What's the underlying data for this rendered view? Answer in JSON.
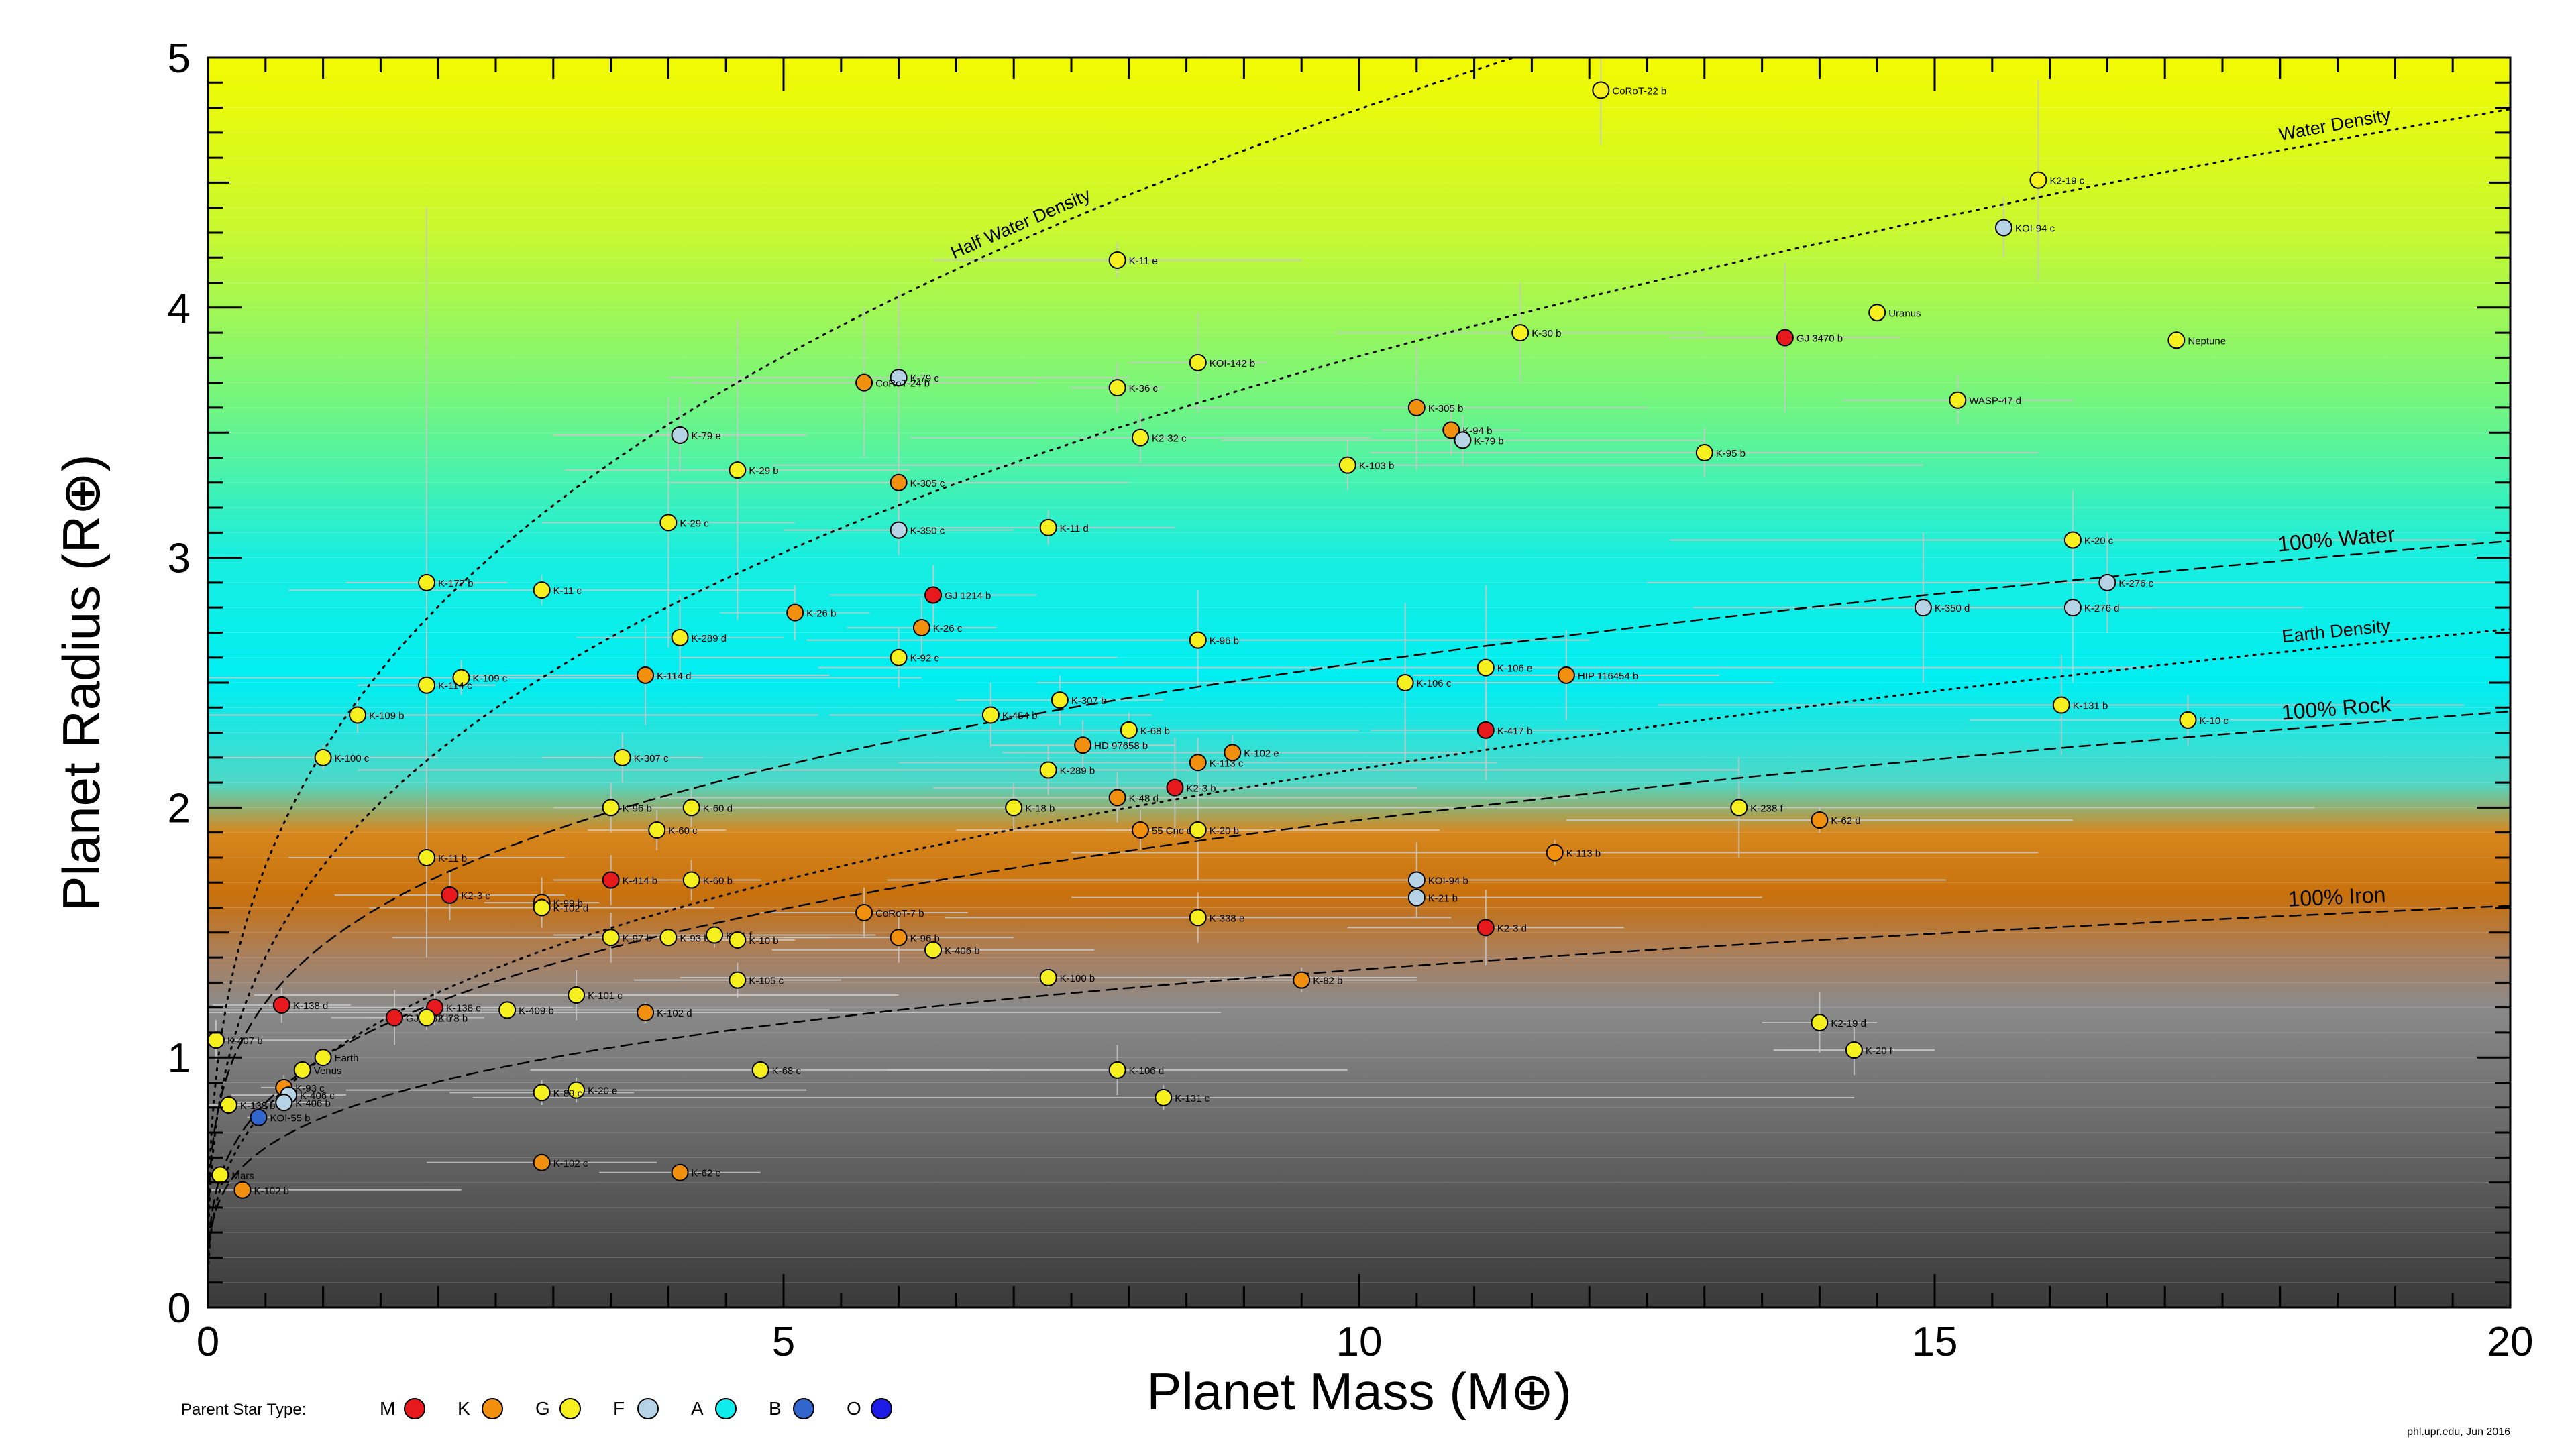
{
  "chart_data": {
    "type": "scatter",
    "xlabel": "Planet Mass (M⊕)",
    "ylabel": "Planet Radius (R⊕)",
    "xlim": [
      0,
      20
    ],
    "ylim": [
      0,
      5
    ],
    "x_ticks": [
      "0",
      "5",
      "10",
      "15",
      "20"
    ],
    "y_ticks": [
      "0",
      "1",
      "2",
      "3",
      "4",
      "5"
    ],
    "background": "vertical gradient by radius: dark gray (iron) → orange (rock) → cyan (water) → yellow (gas)",
    "credit": "phl.upr.edu, Jun 2016",
    "colors": {
      "M": "#e8191c",
      "K": "#f0900e",
      "G": "#f5f01e",
      "F": "#b6d3e6",
      "A": "#10ecec",
      "B": "#3366cc",
      "O": "#1c1ce6"
    },
    "legend": {
      "title": "Parent Star Type:",
      "items": [
        {
          "label": "M",
          "color": "#e8191c"
        },
        {
          "label": "K",
          "color": "#f0900e"
        },
        {
          "label": "G",
          "color": "#f5f01e"
        },
        {
          "label": "F",
          "color": "#b6d3e6"
        },
        {
          "label": "A",
          "color": "#10ecec"
        },
        {
          "label": "B",
          "color": "#3366cc"
        },
        {
          "label": "O",
          "color": "#1c1ce6"
        }
      ]
    },
    "curves": [
      {
        "label": "Half Water Density",
        "density": 0.5,
        "style": "dotted"
      },
      {
        "label": "Water Density",
        "density": 1.0,
        "style": "dotted"
      },
      {
        "label": "Earth Density",
        "density": 5.51,
        "style": "dotted"
      },
      {
        "label": "100% Water",
        "coef": 1.45,
        "exp": 0.25,
        "style": "dashed"
      },
      {
        "label": "100% Rock",
        "coef": 1.0,
        "exp": 0.29,
        "style": "dashed"
      },
      {
        "label": "100% Iron",
        "coef": 0.76,
        "exp": 0.25,
        "style": "dashed"
      }
    ],
    "points": [
      {
        "label": "CoRoT-22 b",
        "x": 12.1,
        "y": 4.87,
        "star": "G",
        "xerr": 0.0,
        "yerr": 0.22
      },
      {
        "label": "K2-19 c",
        "x": 15.9,
        "y": 4.51,
        "star": "G",
        "xerr": 0.0,
        "yerr": 0.4
      },
      {
        "label": "KOI-94 c",
        "x": 15.6,
        "y": 4.32,
        "star": "F",
        "xerr": 0.0,
        "yerr": 0.12
      },
      {
        "label": "K-11 e",
        "x": 7.9,
        "y": 4.19,
        "star": "G",
        "xerr": 1.6,
        "yerr": 0.07
      },
      {
        "label": "Uranus",
        "x": 14.5,
        "y": 3.98,
        "star": "G"
      },
      {
        "label": "K-30 b",
        "x": 11.4,
        "y": 3.9,
        "star": "G",
        "xerr": 1.6,
        "yerr": 0.2
      },
      {
        "label": "GJ 3470 b",
        "x": 13.7,
        "y": 3.88,
        "star": "M",
        "xerr": 1.0,
        "yerr": 0.3
      },
      {
        "label": "Neptune",
        "x": 17.1,
        "y": 3.87,
        "star": "G"
      },
      {
        "label": "KOI-142 b",
        "x": 8.6,
        "y": 3.78,
        "star": "G",
        "xerr": 0.6,
        "yerr": 0.2
      },
      {
        "label": "K-79 c",
        "x": 6.0,
        "y": 3.72,
        "star": "F",
        "xerr": 2.0,
        "yerr": 0.35
      },
      {
        "label": "CoRoT-24 b",
        "x": 5.7,
        "y": 3.7,
        "star": "K",
        "xerr": 1.5,
        "yerr": 0.3
      },
      {
        "label": "K-36 c",
        "x": 7.9,
        "y": 3.68,
        "star": "G",
        "xerr": 0.4,
        "yerr": 0.1
      },
      {
        "label": "WASP-47 d",
        "x": 15.2,
        "y": 3.63,
        "star": "G",
        "xerr": 1.0,
        "yerr": 0.1
      },
      {
        "label": "K-305 b",
        "x": 10.5,
        "y": 3.6,
        "star": "K",
        "xerr": 2.0,
        "yerr": 0.25
      },
      {
        "label": "K-94 b",
        "x": 10.8,
        "y": 3.51,
        "star": "K",
        "xerr": 0.6,
        "yerr": 0.1
      },
      {
        "label": "K-79 e",
        "x": 4.1,
        "y": 3.49,
        "star": "F",
        "xerr": 1.1,
        "yerr": 0.15
      },
      {
        "label": "K2-32 c",
        "x": 8.1,
        "y": 3.48,
        "star": "G",
        "xerr": 2.0,
        "yerr": 0.1
      },
      {
        "label": "K-79 b",
        "x": 10.9,
        "y": 3.47,
        "star": "F",
        "xerr": 2.1,
        "yerr": 0.1
      },
      {
        "label": "K-95 b",
        "x": 13.0,
        "y": 3.42,
        "star": "G",
        "xerr": 2.9,
        "yerr": 0.1
      },
      {
        "label": "K-103 b",
        "x": 9.9,
        "y": 3.37,
        "star": "G",
        "xerr": 5.0,
        "yerr": 0.1
      },
      {
        "label": "K-29 b",
        "x": 4.6,
        "y": 3.35,
        "star": "G",
        "xerr": 1.5,
        "yerr": 0.6
      },
      {
        "label": "K-305 c",
        "x": 6.0,
        "y": 3.3,
        "star": "K",
        "xerr": 2.0,
        "yerr": 0.2
      },
      {
        "label": "K-29 c",
        "x": 4.0,
        "y": 3.14,
        "star": "G",
        "xerr": 1.1,
        "yerr": 0.5
      },
      {
        "label": "K-350 c",
        "x": 6.0,
        "y": 3.11,
        "star": "F",
        "xerr": 1.0,
        "yerr": 0.1
      },
      {
        "label": "K-11 d",
        "x": 7.3,
        "y": 3.12,
        "star": "G",
        "xerr": 1.1,
        "yerr": 0.07
      },
      {
        "label": "K-20 c",
        "x": 16.2,
        "y": 3.07,
        "star": "G",
        "xerr": 3.5,
        "yerr": 0.2
      },
      {
        "label": "K-276 c",
        "x": 16.5,
        "y": 2.9,
        "star": "F",
        "xerr": 4.0,
        "yerr": 0.2
      },
      {
        "label": "K-177 b",
        "x": 1.9,
        "y": 2.9,
        "star": "G",
        "xerr": 0.7,
        "yerr": 1.5
      },
      {
        "label": "K-11 c",
        "x": 2.9,
        "y": 2.87,
        "star": "G",
        "xerr": 2.2,
        "yerr": 0.06
      },
      {
        "label": "GJ 1214 b",
        "x": 6.3,
        "y": 2.85,
        "star": "M",
        "xerr": 0.9,
        "yerr": 0.12
      },
      {
        "label": "K-350 d",
        "x": 14.9,
        "y": 2.8,
        "star": "F",
        "xerr": 2.0,
        "yerr": 0.3
      },
      {
        "label": "K-276 d",
        "x": 16.2,
        "y": 2.8,
        "star": "F",
        "xerr": 2.0,
        "yerr": 0.3
      },
      {
        "label": "K-26 b",
        "x": 5.1,
        "y": 2.78,
        "star": "K",
        "xerr": 0.65,
        "yerr": 0.11
      },
      {
        "label": "K-26 c",
        "x": 6.2,
        "y": 2.72,
        "star": "K",
        "xerr": 0.65,
        "yerr": 0.12
      },
      {
        "label": "K-289 d",
        "x": 4.1,
        "y": 2.68,
        "star": "G",
        "xerr": 0.9,
        "yerr": 0.17
      },
      {
        "label": "K-96 b",
        "x": 8.6,
        "y": 2.67,
        "star": "G",
        "xerr": 3.4,
        "yerr": 0.2
      },
      {
        "label": "K-92 c",
        "x": 6.0,
        "y": 2.6,
        "star": "G",
        "xerr": 1.9,
        "yerr": 0.12
      },
      {
        "label": "K-106 e",
        "x": 11.1,
        "y": 2.56,
        "star": "G",
        "xerr": 5.8,
        "yerr": 0.33
      },
      {
        "label": "HIP 116454 b",
        "x": 11.8,
        "y": 2.53,
        "star": "K",
        "xerr": 1.33,
        "yerr": 0.18
      },
      {
        "label": "K-114 d",
        "x": 3.8,
        "y": 2.53,
        "star": "K",
        "xerr": 1.6,
        "yerr": 0.2
      },
      {
        "label": "K-109 c",
        "x": 2.2,
        "y": 2.52,
        "star": "G",
        "xerr": 4.0,
        "yerr": 0.07
      },
      {
        "label": "K-106 c",
        "x": 10.4,
        "y": 2.5,
        "star": "G",
        "xerr": 3.2,
        "yerr": 0.32
      },
      {
        "label": "K-114 c",
        "x": 1.9,
        "y": 2.49,
        "star": "G",
        "xerr": 0.6,
        "yerr": 0.2
      },
      {
        "label": "K-307 b",
        "x": 7.4,
        "y": 2.43,
        "star": "G",
        "xerr": 0.9,
        "yerr": 0.1
      },
      {
        "label": "K-131 b",
        "x": 16.1,
        "y": 2.41,
        "star": "G",
        "xerr": 3.5,
        "yerr": 0.2
      },
      {
        "label": "K-109 b",
        "x": 1.3,
        "y": 2.37,
        "star": "G",
        "xerr": 4.0,
        "yerr": 0.07
      },
      {
        "label": "K-454 b",
        "x": 6.8,
        "y": 2.37,
        "star": "G",
        "xerr": 1.4,
        "yerr": 0.13
      },
      {
        "label": "K-10 c",
        "x": 17.2,
        "y": 2.35,
        "star": "G",
        "xerr": 1.9,
        "yerr": 0.1
      },
      {
        "label": "K-68 b",
        "x": 8.0,
        "y": 2.31,
        "star": "G",
        "xerr": 2.0,
        "yerr": 0.07
      },
      {
        "label": "K-417 b",
        "x": 11.1,
        "y": 2.31,
        "star": "M",
        "xerr": 1.0,
        "yerr": 0.2
      },
      {
        "label": "HD 97658 b",
        "x": 7.6,
        "y": 2.25,
        "star": "K",
        "xerr": 0.8,
        "yerr": 0.1
      },
      {
        "label": "K-102 e",
        "x": 8.9,
        "y": 2.22,
        "star": "K",
        "xerr": 2.0,
        "yerr": 0.07
      },
      {
        "label": "K-100 c",
        "x": 1.0,
        "y": 2.2,
        "star": "G",
        "xerr": 1.0,
        "yerr": 0.05
      },
      {
        "label": "K-307 c",
        "x": 3.6,
        "y": 2.2,
        "star": "G",
        "xerr": 0.7,
        "yerr": 0.1
      },
      {
        "label": "K-113 c",
        "x": 8.6,
        "y": 2.18,
        "star": "K",
        "xerr": 2.6,
        "yerr": 0.1
      },
      {
        "label": "K-289 b",
        "x": 7.3,
        "y": 2.15,
        "star": "G",
        "xerr": 6.0,
        "yerr": 0.1
      },
      {
        "label": "K2-3 b",
        "x": 8.4,
        "y": 2.08,
        "star": "M",
        "xerr": 2.1,
        "yerr": 0.2
      },
      {
        "label": "K-48 d",
        "x": 7.9,
        "y": 2.04,
        "star": "K",
        "xerr": 4.0,
        "yerr": 0.1
      },
      {
        "label": "K-96 b",
        "x": 3.5,
        "y": 2.0,
        "star": "G",
        "xerr": 0.5,
        "yerr": 0.1
      },
      {
        "label": "K-60 d",
        "x": 4.2,
        "y": 2.0,
        "star": "G",
        "xerr": 0.6,
        "yerr": 0.08
      },
      {
        "label": "K-18 b",
        "x": 7.0,
        "y": 2.0,
        "star": "G",
        "xerr": 3.5,
        "yerr": 0.1
      },
      {
        "label": "K-238 f",
        "x": 13.3,
        "y": 2.0,
        "star": "G",
        "xerr": 5.0,
        "yerr": 0.2
      },
      {
        "label": "K-62 d",
        "x": 14.0,
        "y": 1.95,
        "star": "K",
        "xerr": 2.2,
        "yerr": 0.05
      },
      {
        "label": "55 Cnc e",
        "x": 8.1,
        "y": 1.91,
        "star": "K",
        "xerr": 0.3,
        "yerr": 0.08
      },
      {
        "label": "K-20 b",
        "x": 8.6,
        "y": 1.91,
        "star": "G",
        "xerr": 2.1,
        "yerr": 0.2
      },
      {
        "label": "K-60 c",
        "x": 3.9,
        "y": 1.91,
        "star": "G",
        "xerr": 0.6,
        "yerr": 0.08
      },
      {
        "label": "K-113 b",
        "x": 11.7,
        "y": 1.82,
        "star": "K",
        "xerr": 4.2,
        "yerr": 0.05
      },
      {
        "label": "K-11 b",
        "x": 1.9,
        "y": 1.8,
        "star": "G",
        "xerr": 1.2,
        "yerr": 0.05
      },
      {
        "label": "KOI-94 b",
        "x": 10.5,
        "y": 1.71,
        "star": "F",
        "xerr": 4.6,
        "yerr": 0.15
      },
      {
        "label": "K-414 b",
        "x": 3.5,
        "y": 1.71,
        "star": "M",
        "xerr": 0.5,
        "yerr": 0.1
      },
      {
        "label": "K-60 b",
        "x": 4.2,
        "y": 1.71,
        "star": "G",
        "xerr": 0.6,
        "yerr": 0.08
      },
      {
        "label": "K-21 b",
        "x": 10.5,
        "y": 1.64,
        "star": "F",
        "xerr": 3.0,
        "yerr": 0.04
      },
      {
        "label": "K2-3 c",
        "x": 2.1,
        "y": 1.65,
        "star": "M",
        "xerr": 1.0,
        "yerr": 0.1
      },
      {
        "label": "K-99 b",
        "x": 2.9,
        "y": 1.62,
        "star": "K",
        "xerr": 0.5,
        "yerr": 0.1
      },
      {
        "label": "K-102 d",
        "x": 2.9,
        "y": 1.6,
        "star": "G",
        "xerr": 1.5,
        "yerr": 0.05
      },
      {
        "label": "CoRoT-7 b",
        "x": 5.7,
        "y": 1.58,
        "star": "K",
        "xerr": 0.9,
        "yerr": 0.1
      },
      {
        "label": "K-338 e",
        "x": 8.6,
        "y": 1.56,
        "star": "G",
        "xerr": 2.2,
        "yerr": 0.1
      },
      {
        "label": "K2-3 d",
        "x": 11.1,
        "y": 1.52,
        "star": "M",
        "xerr": 1.2,
        "yerr": 0.15
      },
      {
        "label": "K-97 b",
        "x": 3.5,
        "y": 1.48,
        "star": "G",
        "xerr": 1.9,
        "yerr": 0.1
      },
      {
        "label": "K-93 b",
        "x": 4.0,
        "y": 1.48,
        "star": "G",
        "xerr": 0.6,
        "yerr": 0.02
      },
      {
        "label": "K-96 b",
        "x": 6.0,
        "y": 1.48,
        "star": "K",
        "xerr": 1.0,
        "yerr": 0.1
      },
      {
        "label": "K-11 f",
        "x": 4.4,
        "y": 1.49,
        "star": "G",
        "xerr": 1.4,
        "yerr": 0.05
      },
      {
        "label": "K-10 b",
        "x": 4.6,
        "y": 1.47,
        "star": "G",
        "xerr": 0.5,
        "yerr": 0.03
      },
      {
        "label": "K-406 b",
        "x": 6.3,
        "y": 1.43,
        "star": "G",
        "xerr": 1.4,
        "yerr": 0.03
      },
      {
        "label": "K-105 c",
        "x": 4.6,
        "y": 1.31,
        "star": "G",
        "xerr": 0.9,
        "yerr": 0.07
      },
      {
        "label": "K-100 b",
        "x": 7.3,
        "y": 1.32,
        "star": "G",
        "xerr": 3.2,
        "yerr": 0.04
      },
      {
        "label": "K-82 b",
        "x": 9.5,
        "y": 1.31,
        "star": "K",
        "xerr": 1.0,
        "yerr": 0.05
      },
      {
        "label": "K-101 c",
        "x": 3.2,
        "y": 1.25,
        "star": "G",
        "xerr": 2.8,
        "yerr": 0.1
      },
      {
        "label": "K-138 d",
        "x": 0.64,
        "y": 1.21,
        "star": "M",
        "xerr": 0.6,
        "yerr": 0.07
      },
      {
        "label": "K-138 c",
        "x": 1.97,
        "y": 1.2,
        "star": "M",
        "xerr": 1.2,
        "yerr": 0.07
      },
      {
        "label": "K-409 b",
        "x": 2.6,
        "y": 1.19,
        "star": "G",
        "xerr": 2.8,
        "yerr": 0.03
      },
      {
        "label": "K-102 d",
        "x": 3.8,
        "y": 1.18,
        "star": "K",
        "xerr": 5.0,
        "yerr": 0.04
      },
      {
        "label": "GJ 1132 b",
        "x": 1.62,
        "y": 1.16,
        "star": "M",
        "xerr": 0.55,
        "yerr": 0.11
      },
      {
        "label": "K-78 b",
        "x": 1.9,
        "y": 1.16,
        "star": "G",
        "xerr": 0.5,
        "yerr": 0.05
      },
      {
        "label": "K2-19 d",
        "x": 14.0,
        "y": 1.14,
        "star": "G",
        "xerr": 0.5,
        "yerr": 0.12
      },
      {
        "label": "K-407 b",
        "x": 0.07,
        "y": 1.07,
        "star": "G",
        "xerr": 1.2,
        "yerr": 0.08
      },
      {
        "label": "K-20 f",
        "x": 14.3,
        "y": 1.03,
        "star": "G",
        "xerr": 0.7,
        "yerr": 0.1
      },
      {
        "label": "Earth",
        "x": 1.0,
        "y": 1.0,
        "star": "G"
      },
      {
        "label": "Venus",
        "x": 0.82,
        "y": 0.95,
        "star": "G"
      },
      {
        "label": "K-68 c",
        "x": 4.8,
        "y": 0.95,
        "star": "G",
        "xerr": 2.0,
        "yerr": 0.03
      },
      {
        "label": "K-106 d",
        "x": 7.9,
        "y": 0.95,
        "star": "G",
        "xerr": 2.0,
        "yerr": 0.1
      },
      {
        "label": "K-93 c",
        "x": 0.66,
        "y": 0.88,
        "star": "K",
        "xerr": 0.2,
        "yerr": 0.05
      },
      {
        "label": "K-20 e",
        "x": 3.2,
        "y": 0.87,
        "star": "G",
        "xerr": 2.0,
        "yerr": 0.05
      },
      {
        "label": "K-89 c",
        "x": 2.9,
        "y": 0.86,
        "star": "G",
        "xerr": 0.8,
        "yerr": 0.05
      },
      {
        "label": "K-131 c",
        "x": 8.3,
        "y": 0.84,
        "star": "G",
        "xerr": 6.0,
        "yerr": 0.05
      },
      {
        "label": "K-406 c",
        "x": 0.7,
        "y": 0.85,
        "star": "F",
        "xerr": 0.5,
        "yerr": 0.03
      },
      {
        "label": "K-406 b",
        "x": 0.66,
        "y": 0.82,
        "star": "F",
        "xerr": 0.4,
        "yerr": 0.03
      },
      {
        "label": "K-138 b",
        "x": 0.18,
        "y": 0.81,
        "star": "G",
        "xerr": 0.2,
        "yerr": 0.03
      },
      {
        "label": "KOI-55 b",
        "x": 0.44,
        "y": 0.76,
        "star": "B",
        "xerr": 0.1,
        "yerr": 0.02
      },
      {
        "label": "Mars",
        "x": 0.107,
        "y": 0.53,
        "star": "G"
      },
      {
        "label": "K-102 c",
        "x": 2.9,
        "y": 0.58,
        "star": "K",
        "xerr": 1.0,
        "yerr": 0.03
      },
      {
        "label": "K-62 c",
        "x": 4.1,
        "y": 0.54,
        "star": "K",
        "xerr": 0.7,
        "yerr": 0.03
      },
      {
        "label": "K-102 b",
        "x": 0.3,
        "y": 0.47,
        "star": "K",
        "xerr": 1.9,
        "yerr": 0.02
      }
    ]
  }
}
